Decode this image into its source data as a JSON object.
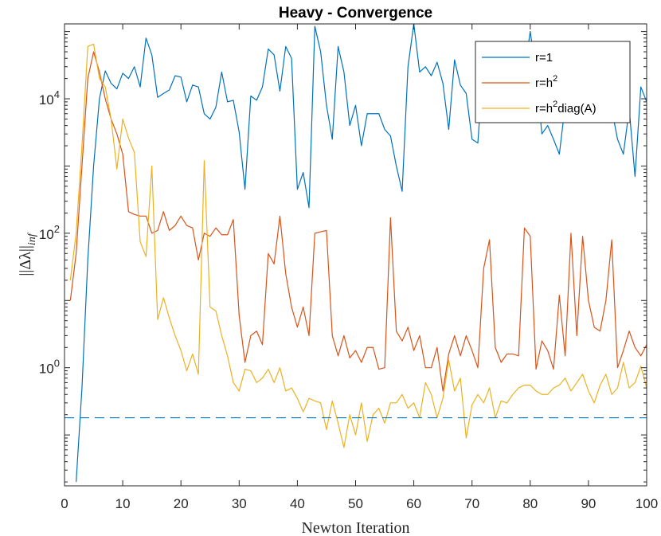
{
  "chart_data": {
    "type": "line",
    "title": "Heavy - Convergence",
    "xlabel": "Newton Iteration",
    "ylabel": "||Δλ||",
    "ylabel_sub": "inf",
    "yscale": "log",
    "xlim": [
      0,
      100
    ],
    "ylim": [
      0.0175,
      130000
    ],
    "xticks": [
      0,
      10,
      20,
      30,
      40,
      50,
      60,
      70,
      80,
      90,
      100
    ],
    "xtick_labels": [
      "0",
      "10",
      "20",
      "30",
      "40",
      "50",
      "60",
      "70",
      "80",
      "90",
      "100"
    ],
    "yticks": [
      {
        "value": 1,
        "base": "10",
        "exp": "0"
      },
      {
        "value": 100,
        "base": "10",
        "exp": "2"
      },
      {
        "value": 10000,
        "base": "10",
        "exp": "4"
      }
    ],
    "legend_position": "top-right",
    "threshold": {
      "value": 0.18,
      "color": "#0072BD",
      "style": "dashed"
    },
    "series": [
      {
        "name": "r=1",
        "label_main": "r=1",
        "label_sup": "",
        "label_tail": "",
        "color": "#0072BD",
        "x": [
          2,
          3,
          4,
          5,
          6,
          7,
          8,
          9,
          10,
          11,
          12,
          13,
          14,
          15,
          16,
          17,
          18,
          19,
          20,
          21,
          22,
          23,
          24,
          25,
          26,
          27,
          28,
          29,
          30,
          31,
          32,
          33,
          34,
          35,
          36,
          37,
          38,
          39,
          40,
          41,
          42,
          43,
          44,
          45,
          46,
          47,
          48,
          49,
          50,
          51,
          52,
          53,
          54,
          55,
          56,
          57,
          58,
          59,
          60,
          61,
          62,
          63,
          64,
          65,
          66,
          67,
          68,
          69,
          70,
          71,
          72,
          73,
          74,
          75,
          76,
          77,
          78,
          79,
          80,
          81,
          82,
          83,
          84,
          85,
          86,
          87,
          88,
          89,
          90,
          91,
          92,
          93,
          94,
          95,
          96,
          97,
          98,
          99,
          100
        ],
        "y": [
          0.02,
          0.5,
          40,
          1000,
          10000,
          26000,
          17000,
          14000,
          24000,
          20000,
          30000,
          15000,
          80000,
          45000,
          10500,
          12000,
          13500,
          22000,
          21000,
          9000,
          16000,
          15000,
          6000,
          5000,
          7500,
          25000,
          9000,
          9500,
          3200,
          450,
          11000,
          9500,
          15000,
          55000,
          45000,
          13000,
          60000,
          40000,
          450,
          800,
          240,
          120000,
          50000,
          8000,
          2500,
          60000,
          25000,
          4000,
          8000,
          2000,
          6000,
          6000,
          6000,
          3500,
          2800,
          1000,
          420,
          30000,
          130000,
          25000,
          30000,
          22000,
          35000,
          17000,
          3500,
          38000,
          16000,
          12000,
          2500,
          2200,
          40000,
          20000,
          15000,
          55000,
          40000,
          30000,
          35000,
          25000,
          100000,
          25000,
          3000,
          4000,
          2500,
          1500,
          8000,
          65000,
          18000,
          12000,
          6000,
          20000,
          8000,
          10000,
          7000,
          2500,
          1500,
          7000,
          700,
          15000,
          9000
        ]
      },
      {
        "name": "r=h^2",
        "label_main": "r=h",
        "label_sup": "2",
        "label_tail": "",
        "color": "#D95319",
        "x": [
          1,
          2,
          3,
          4,
          5,
          6,
          7,
          8,
          9,
          10,
          11,
          12,
          13,
          14,
          15,
          16,
          17,
          18,
          19,
          20,
          21,
          22,
          23,
          24,
          25,
          26,
          27,
          28,
          29,
          30,
          31,
          32,
          33,
          34,
          35,
          36,
          37,
          38,
          39,
          40,
          41,
          42,
          43,
          44,
          45,
          46,
          47,
          48,
          49,
          50,
          51,
          52,
          53,
          54,
          55,
          56,
          57,
          58,
          59,
          60,
          61,
          62,
          63,
          64,
          65,
          66,
          67,
          68,
          69,
          70,
          71,
          72,
          73,
          74,
          75,
          76,
          77,
          78,
          79,
          80,
          81,
          82,
          83,
          84,
          85,
          86,
          87,
          88,
          89,
          90,
          91,
          92,
          93,
          94,
          95,
          96,
          97,
          98,
          99,
          100
        ],
        "y": [
          10,
          50,
          1000,
          20000,
          50000,
          25000,
          10000,
          5000,
          3000,
          1500,
          210,
          190,
          180,
          180,
          100,
          110,
          210,
          110,
          130,
          180,
          130,
          120,
          40,
          100,
          90,
          120,
          95,
          95,
          160,
          6,
          1.2,
          3,
          3.5,
          2.2,
          50,
          35,
          180,
          25,
          8,
          4,
          8,
          3,
          100,
          105,
          110,
          3,
          1.5,
          3,
          1.4,
          1.8,
          1.2,
          2,
          2,
          0.95,
          1.0,
          170,
          3.5,
          2.5,
          4,
          1.8,
          3,
          1,
          1,
          2,
          0.45,
          1.6,
          3,
          1.5,
          3,
          1.8,
          1,
          30,
          80,
          2,
          1.2,
          1.6,
          1.6,
          1.5,
          120,
          90,
          0.95,
          2.5,
          1.8,
          0.95,
          12,
          1.5,
          100,
          3,
          90,
          10,
          4,
          3.5,
          10,
          80,
          1.0,
          1.8,
          3.5,
          2,
          1.5,
          2.2
        ]
      },
      {
        "name": "r=h^2diag(A)",
        "label_main": "r=h",
        "label_sup": "2",
        "label_tail": "diag(A)",
        "color": "#EDB120",
        "x": [
          1,
          2,
          3,
          4,
          5,
          6,
          7,
          8,
          9,
          10,
          11,
          12,
          13,
          14,
          15,
          16,
          17,
          18,
          19,
          20,
          21,
          22,
          23,
          24,
          25,
          26,
          27,
          28,
          29,
          30,
          31,
          32,
          33,
          34,
          35,
          36,
          37,
          38,
          39,
          40,
          41,
          42,
          43,
          44,
          45,
          46,
          47,
          48,
          49,
          50,
          51,
          52,
          53,
          54,
          55,
          56,
          57,
          58,
          59,
          60,
          61,
          62,
          63,
          64,
          65,
          66,
          67,
          68,
          69,
          70,
          71,
          72,
          73,
          74,
          75,
          76,
          77,
          78,
          79,
          80,
          81,
          82,
          83,
          84,
          85,
          86,
          87,
          88,
          89,
          90,
          91,
          92,
          93,
          94,
          95,
          96,
          97,
          98,
          99,
          100
        ],
        "y": [
          20,
          100,
          2000,
          60000,
          65000,
          20000,
          15000,
          5000,
          900,
          5000,
          2600,
          1600,
          75,
          45,
          1000,
          5.2,
          11,
          5.5,
          3,
          1.8,
          0.9,
          1.6,
          0.8,
          1200,
          8,
          7,
          3,
          1.5,
          0.6,
          0.45,
          0.95,
          0.9,
          0.6,
          0.7,
          0.95,
          0.6,
          1.0,
          0.45,
          0.5,
          0.35,
          0.22,
          0.35,
          0.32,
          0.3,
          0.12,
          0.32,
          0.15,
          0.065,
          0.2,
          0.1,
          0.3,
          0.08,
          0.2,
          0.25,
          0.15,
          0.3,
          0.3,
          0.4,
          0.25,
          0.3,
          0.18,
          0.6,
          0.4,
          0.18,
          0.35,
          1.3,
          0.45,
          0.7,
          0.09,
          0.28,
          0.4,
          0.3,
          0.5,
          0.18,
          0.32,
          0.3,
          0.4,
          0.5,
          0.55,
          0.55,
          0.45,
          0.4,
          0.4,
          0.5,
          0.55,
          0.7,
          0.45,
          0.6,
          0.8,
          0.45,
          0.3,
          0.55,
          0.8,
          0.4,
          0.5,
          1.2,
          0.5,
          0.6,
          1.05,
          0.5
        ]
      }
    ]
  }
}
